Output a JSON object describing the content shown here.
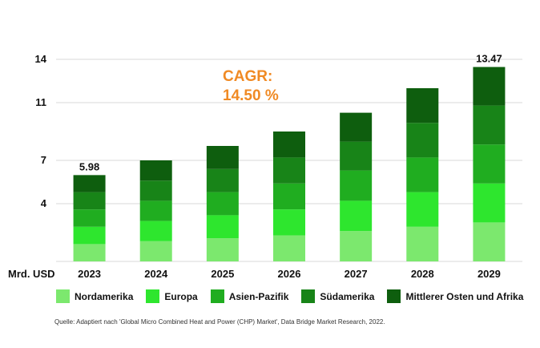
{
  "chart_data": {
    "type": "bar",
    "stacked": true,
    "categories": [
      "2023",
      "2024",
      "2025",
      "2026",
      "2027",
      "2028",
      "2029"
    ],
    "series": [
      {
        "name": "Nordamerika",
        "color": "#7ce86e",
        "values": [
          1.2,
          1.4,
          1.6,
          1.8,
          2.1,
          2.4,
          2.7
        ]
      },
      {
        "name": "Europa",
        "color": "#2ee62e",
        "values": [
          1.2,
          1.4,
          1.6,
          1.8,
          2.1,
          2.4,
          2.7
        ]
      },
      {
        "name": "Asien-Pazifik",
        "color": "#20ad20",
        "values": [
          1.2,
          1.4,
          1.6,
          1.8,
          2.1,
          2.4,
          2.7
        ]
      },
      {
        "name": "Südamerika",
        "color": "#188418",
        "values": [
          1.2,
          1.4,
          1.6,
          1.8,
          2.0,
          2.4,
          2.7
        ]
      },
      {
        "name": "Mittlerer Osten und Afrika",
        "color": "#0e5e0e",
        "values": [
          1.18,
          1.4,
          1.6,
          1.8,
          2.0,
          2.4,
          2.67
        ]
      }
    ],
    "totals_labels": {
      "2023": "5.98",
      "2029": "13.47"
    },
    "yticks": [
      "14",
      "11",
      "7",
      "4"
    ],
    "yticks_values": [
      14,
      11,
      7,
      4
    ],
    "ylim": [
      0,
      14
    ],
    "ylabel": "Mrd. USD",
    "annotation": {
      "line1": "CAGR:",
      "line2": "14.50 %"
    },
    "annotation_color": "#f08a24",
    "legend_position": "bottom",
    "grid": true,
    "source": "Quelle: Adaptiert nach 'Global Micro Combined Heat and Power (CHP) Market', Data Bridge Market Research, 2022."
  }
}
